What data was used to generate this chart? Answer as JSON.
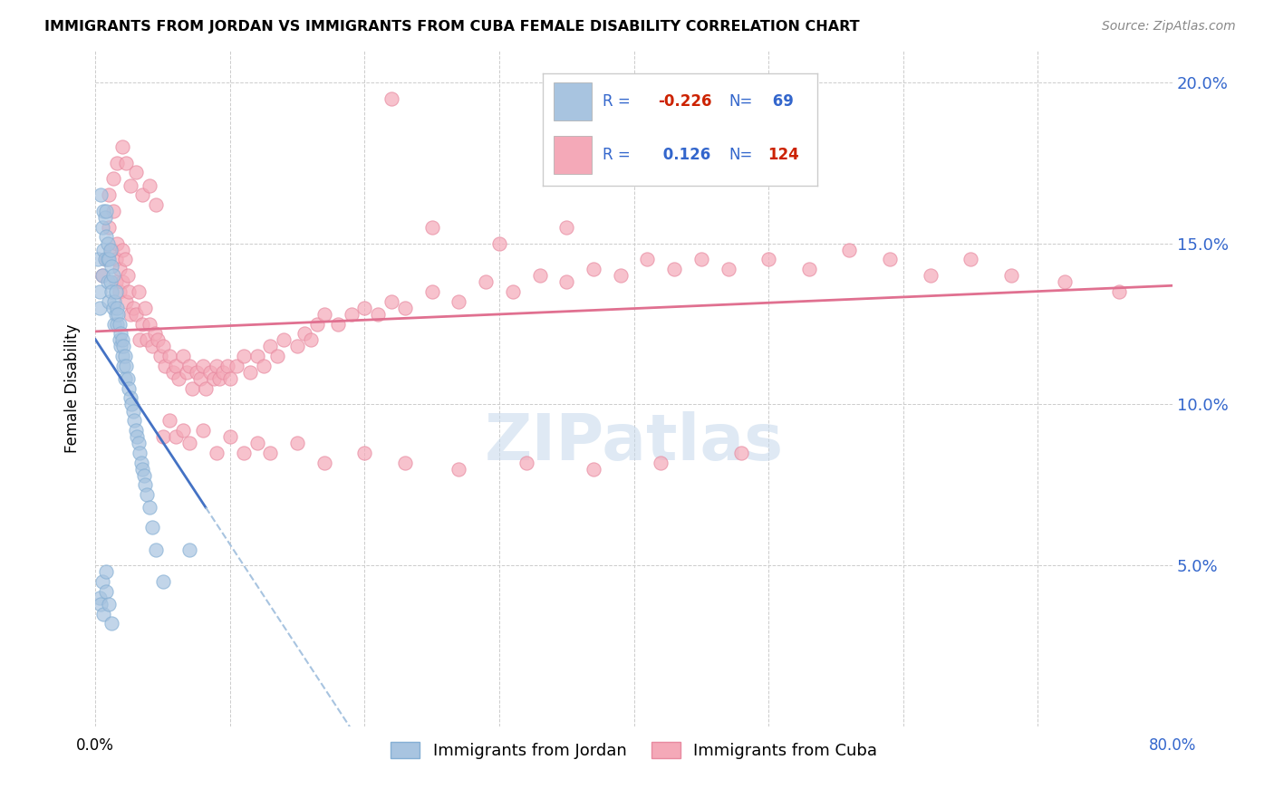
{
  "title": "IMMIGRANTS FROM JORDAN VS IMMIGRANTS FROM CUBA FEMALE DISABILITY CORRELATION CHART",
  "source": "Source: ZipAtlas.com",
  "ylabel": "Female Disability",
  "xlim": [
    0.0,
    0.8
  ],
  "ylim": [
    0.0,
    0.21
  ],
  "yticks": [
    0.0,
    0.05,
    0.1,
    0.15,
    0.2
  ],
  "xticks": [
    0.0,
    0.1,
    0.2,
    0.3,
    0.4,
    0.5,
    0.6,
    0.7,
    0.8
  ],
  "jordan_color": "#a8c4e0",
  "jordan_edge": "#85afd4",
  "cuba_color": "#f4a9b8",
  "cuba_edge": "#e88aa0",
  "jordan_line_color": "#4472c4",
  "jordan_dash_color": "#a8c4e0",
  "cuba_line_color": "#e07090",
  "jordan_R": -0.226,
  "jordan_N": 69,
  "cuba_R": 0.126,
  "cuba_N": 124,
  "legend_R1": "-0.226",
  "legend_N1": "69",
  "legend_R2": "0.126",
  "legend_N2": "124",
  "watermark": "ZIPatlas",
  "jordan_label": "Immigrants from Jordan",
  "cuba_label": "Immigrants from Cuba",
  "jordan_scatter_x": [
    0.002,
    0.003,
    0.003,
    0.004,
    0.005,
    0.005,
    0.006,
    0.006,
    0.007,
    0.007,
    0.008,
    0.008,
    0.009,
    0.009,
    0.009,
    0.01,
    0.01,
    0.011,
    0.011,
    0.012,
    0.012,
    0.013,
    0.013,
    0.014,
    0.014,
    0.015,
    0.015,
    0.016,
    0.016,
    0.017,
    0.018,
    0.018,
    0.019,
    0.019,
    0.02,
    0.02,
    0.021,
    0.021,
    0.022,
    0.022,
    0.023,
    0.024,
    0.025,
    0.026,
    0.027,
    0.028,
    0.029,
    0.03,
    0.031,
    0.032,
    0.033,
    0.034,
    0.035,
    0.036,
    0.037,
    0.038,
    0.04,
    0.042,
    0.045,
    0.05,
    0.003,
    0.004,
    0.005,
    0.006,
    0.008,
    0.008,
    0.01,
    0.012,
    0.07
  ],
  "jordan_scatter_y": [
    0.145,
    0.135,
    0.13,
    0.165,
    0.155,
    0.14,
    0.16,
    0.148,
    0.145,
    0.158,
    0.16,
    0.152,
    0.145,
    0.138,
    0.15,
    0.145,
    0.132,
    0.138,
    0.148,
    0.135,
    0.143,
    0.13,
    0.14,
    0.132,
    0.125,
    0.128,
    0.135,
    0.125,
    0.13,
    0.128,
    0.125,
    0.12,
    0.122,
    0.118,
    0.12,
    0.115,
    0.118,
    0.112,
    0.115,
    0.108,
    0.112,
    0.108,
    0.105,
    0.102,
    0.1,
    0.098,
    0.095,
    0.092,
    0.09,
    0.088,
    0.085,
    0.082,
    0.08,
    0.078,
    0.075,
    0.072,
    0.068,
    0.062,
    0.055,
    0.045,
    0.04,
    0.038,
    0.045,
    0.035,
    0.042,
    0.048,
    0.038,
    0.032,
    0.055
  ],
  "cuba_scatter_x": [
    0.005,
    0.008,
    0.01,
    0.012,
    0.013,
    0.015,
    0.015,
    0.016,
    0.018,
    0.018,
    0.02,
    0.02,
    0.022,
    0.023,
    0.024,
    0.025,
    0.026,
    0.028,
    0.03,
    0.032,
    0.033,
    0.035,
    0.037,
    0.038,
    0.04,
    0.042,
    0.044,
    0.046,
    0.048,
    0.05,
    0.052,
    0.055,
    0.058,
    0.06,
    0.062,
    0.065,
    0.068,
    0.07,
    0.072,
    0.075,
    0.078,
    0.08,
    0.082,
    0.085,
    0.088,
    0.09,
    0.092,
    0.095,
    0.098,
    0.1,
    0.105,
    0.11,
    0.115,
    0.12,
    0.125,
    0.13,
    0.135,
    0.14,
    0.15,
    0.155,
    0.16,
    0.165,
    0.17,
    0.18,
    0.19,
    0.2,
    0.21,
    0.22,
    0.23,
    0.25,
    0.27,
    0.29,
    0.31,
    0.33,
    0.35,
    0.37,
    0.39,
    0.41,
    0.43,
    0.45,
    0.47,
    0.5,
    0.53,
    0.56,
    0.59,
    0.62,
    0.65,
    0.68,
    0.72,
    0.76,
    0.01,
    0.013,
    0.016,
    0.02,
    0.023,
    0.026,
    0.03,
    0.035,
    0.04,
    0.045,
    0.05,
    0.055,
    0.06,
    0.065,
    0.07,
    0.08,
    0.09,
    0.1,
    0.11,
    0.12,
    0.13,
    0.15,
    0.17,
    0.2,
    0.23,
    0.27,
    0.32,
    0.37,
    0.42,
    0.48,
    0.3,
    0.35,
    0.25,
    0.22
  ],
  "cuba_scatter_y": [
    0.14,
    0.145,
    0.155,
    0.148,
    0.16,
    0.145,
    0.138,
    0.15,
    0.142,
    0.135,
    0.148,
    0.138,
    0.145,
    0.132,
    0.14,
    0.135,
    0.128,
    0.13,
    0.128,
    0.135,
    0.12,
    0.125,
    0.13,
    0.12,
    0.125,
    0.118,
    0.122,
    0.12,
    0.115,
    0.118,
    0.112,
    0.115,
    0.11,
    0.112,
    0.108,
    0.115,
    0.11,
    0.112,
    0.105,
    0.11,
    0.108,
    0.112,
    0.105,
    0.11,
    0.108,
    0.112,
    0.108,
    0.11,
    0.112,
    0.108,
    0.112,
    0.115,
    0.11,
    0.115,
    0.112,
    0.118,
    0.115,
    0.12,
    0.118,
    0.122,
    0.12,
    0.125,
    0.128,
    0.125,
    0.128,
    0.13,
    0.128,
    0.132,
    0.13,
    0.135,
    0.132,
    0.138,
    0.135,
    0.14,
    0.138,
    0.142,
    0.14,
    0.145,
    0.142,
    0.145,
    0.142,
    0.145,
    0.142,
    0.148,
    0.145,
    0.14,
    0.145,
    0.14,
    0.138,
    0.135,
    0.165,
    0.17,
    0.175,
    0.18,
    0.175,
    0.168,
    0.172,
    0.165,
    0.168,
    0.162,
    0.09,
    0.095,
    0.09,
    0.092,
    0.088,
    0.092,
    0.085,
    0.09,
    0.085,
    0.088,
    0.085,
    0.088,
    0.082,
    0.085,
    0.082,
    0.08,
    0.082,
    0.08,
    0.082,
    0.085,
    0.15,
    0.155,
    0.155,
    0.195
  ]
}
